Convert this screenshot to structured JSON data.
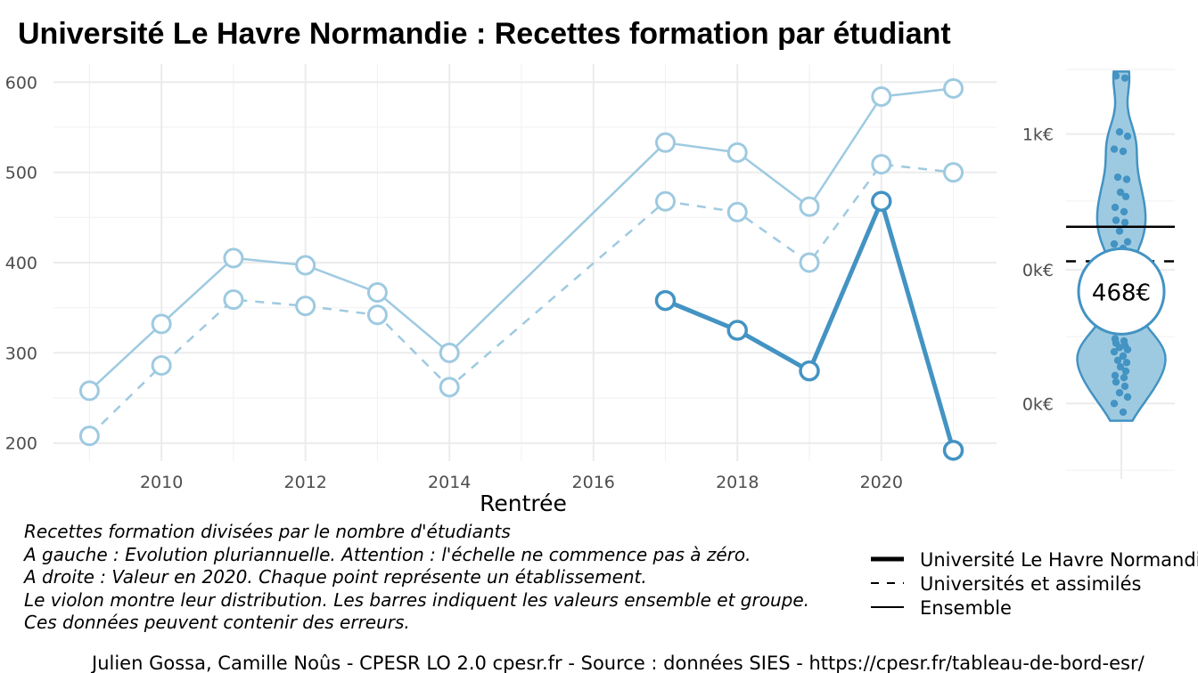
{
  "title": "Université Le Havre Normandie  :  Recettes formation par étudiant",
  "chart_data": [
    {
      "type": "line",
      "xlabel": "Rentrée",
      "ylabel": "",
      "xlim": [
        2008.5,
        2021.6
      ],
      "ylim": [
        180,
        620
      ],
      "x_ticks": [
        2010,
        2012,
        2014,
        2016,
        2018,
        2020
      ],
      "y_ticks": [
        200,
        300,
        400,
        500,
        600
      ],
      "grid": true,
      "colors": {
        "light": "#9ecae1",
        "dark": "#4393c3"
      },
      "series": [
        {
          "name": "Ensemble",
          "style": "solid-thin",
          "points": [
            [
              2009,
              258
            ],
            [
              2010,
              332
            ],
            [
              2011,
              405
            ],
            [
              2012,
              397
            ],
            [
              2013,
              367
            ],
            [
              2014,
              300
            ],
            [
              2017,
              533
            ],
            [
              2018,
              522
            ],
            [
              2019,
              462
            ],
            [
              2020,
              584
            ],
            [
              2021,
              593
            ]
          ]
        },
        {
          "name": "Universités et assimilés",
          "style": "dashed",
          "points": [
            [
              2009,
              208
            ],
            [
              2010,
              286
            ],
            [
              2011,
              359
            ],
            [
              2012,
              352
            ],
            [
              2013,
              342
            ],
            [
              2014,
              262
            ],
            [
              2017,
              468
            ],
            [
              2018,
              456
            ],
            [
              2019,
              400
            ],
            [
              2020,
              509
            ],
            [
              2021,
              500
            ]
          ]
        },
        {
          "name": "Université Le Havre Normandie",
          "style": "solid-thick",
          "points": [
            [
              2017,
              358
            ],
            [
              2018,
              325
            ],
            [
              2019,
              280
            ],
            [
              2020,
              468
            ],
            [
              2021,
              192
            ]
          ]
        }
      ]
    },
    {
      "type": "scatter",
      "subtype": "violin",
      "ylim": [
        -0.35,
        1.55
      ],
      "y_ticks": [
        {
          "value": 0,
          "label": "0k€"
        },
        {
          "value": 0.62,
          "label": "0k€"
        },
        {
          "value": 1.25,
          "label": "1k€"
        }
      ],
      "reference_lines": [
        {
          "label": "Ensemble",
          "value": 0.82,
          "style": "solid"
        },
        {
          "label": "Universités et assimilés",
          "value": 0.66,
          "style": "dashed"
        }
      ],
      "highlight_label": "468€",
      "highlight_value": 0.52,
      "points": [
        1.52,
        1.51,
        1.26,
        1.24,
        1.18,
        1.17,
        1.05,
        1.04,
        0.98,
        0.96,
        0.91,
        0.89,
        0.85,
        0.84,
        0.8,
        0.75,
        0.74,
        0.72,
        0.56,
        0.5,
        0.43,
        0.36,
        0.3,
        0.29,
        0.28,
        0.27,
        0.26,
        0.25,
        0.24,
        0.22,
        0.2,
        0.19,
        0.17,
        0.15,
        0.13,
        0.12,
        0.1,
        0.08,
        0.05,
        0.03,
        0.0,
        -0.04
      ]
    }
  ],
  "notes": [
    "Recettes formation divisées par le nombre d'étudiants",
    "A gauche : Evolution pluriannuelle. Attention : l'échelle ne commence pas à zéro.",
    "A droite : Valeur en 2020. Chaque point représente un établissement.",
    "Le violon montre leur distribution. Les barres indiquent les valeurs ensemble et groupe.",
    "Ces données peuvent contenir des erreurs."
  ],
  "legend": [
    {
      "label": "Université Le Havre Normandie",
      "style": "solid-thick"
    },
    {
      "label": "Universités et assimilés",
      "style": "dashed"
    },
    {
      "label": "Ensemble",
      "style": "solid"
    }
  ],
  "caption": "Julien Gossa, Camille Noûs - CPESR LO 2.0 cpesr.fr - Source : données SIES - https://cpesr.fr/tableau-de-bord-esr/"
}
